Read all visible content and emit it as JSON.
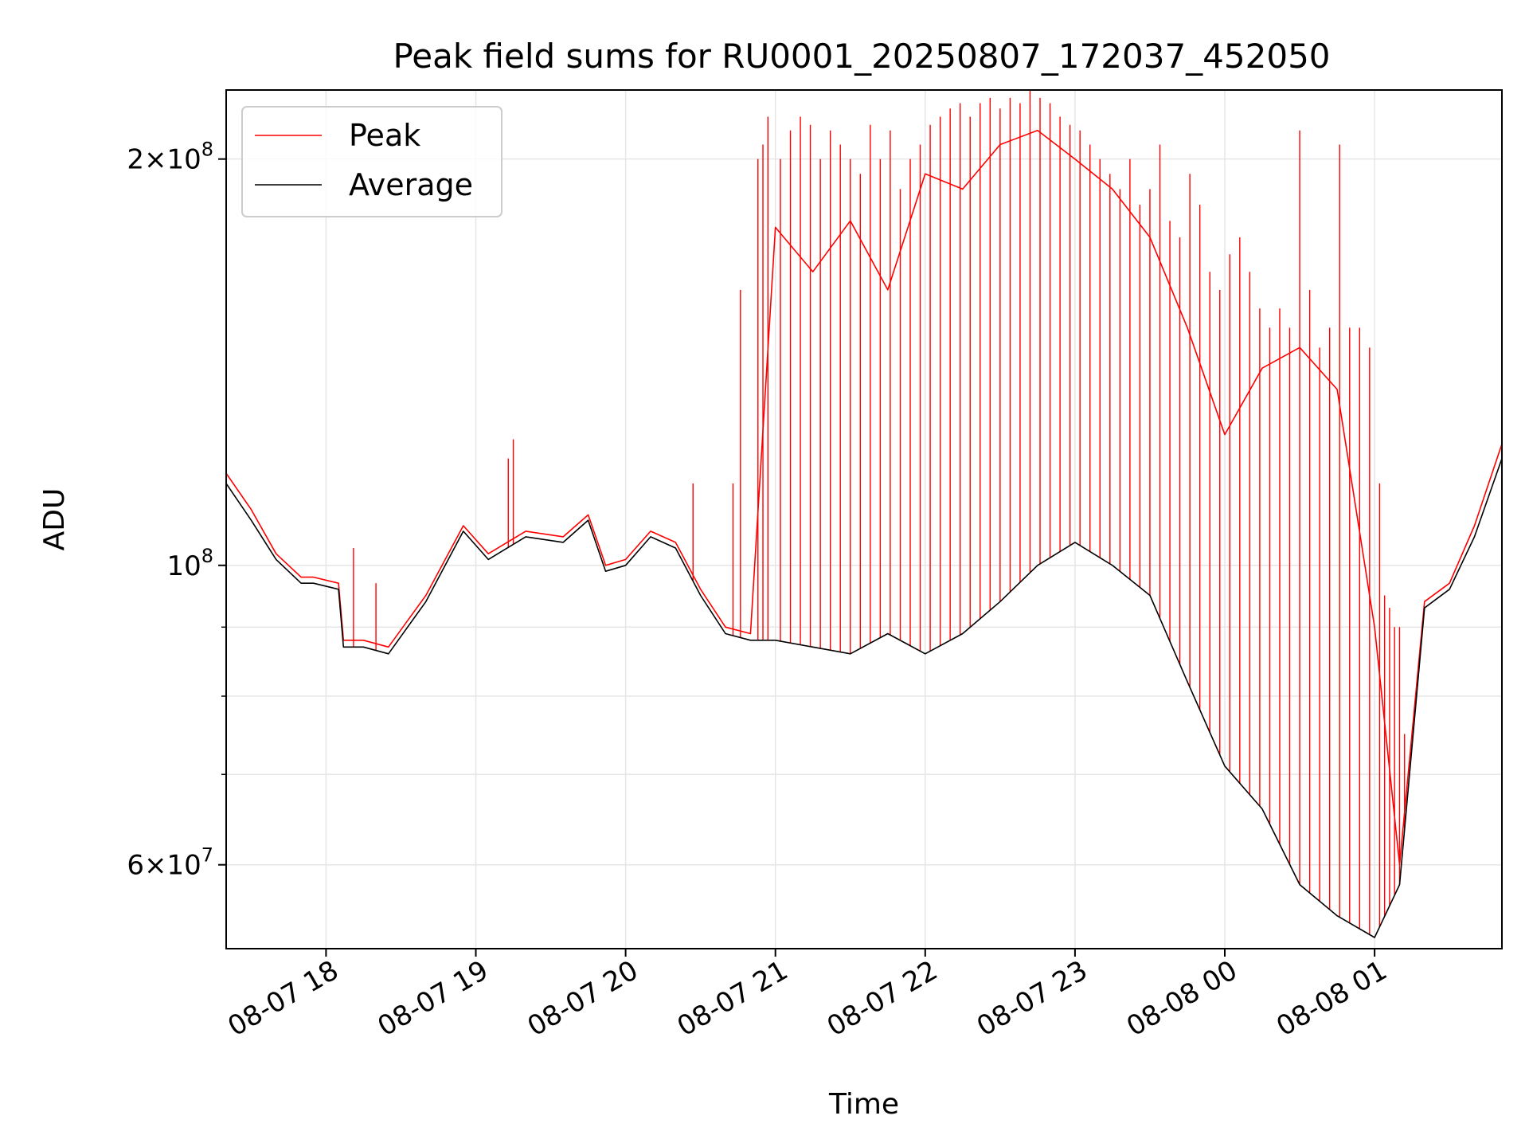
{
  "chart_data": {
    "type": "line",
    "title": "Peak field sums for RU0001_20250807_172037_452050",
    "xlabel": "Time",
    "ylabel": "ADU",
    "y_scale": "log",
    "xlim": [
      "2025-08-07 17:20",
      "2025-08-08 01:51"
    ],
    "ylim": [
      52000000,
      225000000
    ],
    "grid": true,
    "legend_position": "top-left",
    "x_ticks": [
      "08-07 18",
      "08-07 19",
      "08-07 20",
      "08-07 21",
      "08-07 22",
      "08-07 23",
      "08-08 00",
      "08-08 01"
    ],
    "y_ticks_major": [
      {
        "value": 60000000,
        "mantissa": "6",
        "exponent": "7"
      },
      {
        "value": 100000000,
        "mantissa": "",
        "exponent": "8"
      },
      {
        "value": 200000000,
        "mantissa": "2",
        "exponent": "8"
      }
    ],
    "y_ticks_minor": [
      70000000,
      80000000,
      90000000
    ],
    "series": [
      {
        "name": "Average",
        "color": "#000000",
        "x": [
          "2025-08-07 17:20",
          "2025-08-07 17:30",
          "2025-08-07 17:40",
          "2025-08-07 17:50",
          "2025-08-07 17:55",
          "2025-08-07 18:05",
          "2025-08-07 18:07",
          "2025-08-07 18:15",
          "2025-08-07 18:25",
          "2025-08-07 18:40",
          "2025-08-07 18:55",
          "2025-08-07 19:05",
          "2025-08-07 19:20",
          "2025-08-07 19:35",
          "2025-08-07 19:45",
          "2025-08-07 19:52",
          "2025-08-07 20:00",
          "2025-08-07 20:10",
          "2025-08-07 20:20",
          "2025-08-07 20:30",
          "2025-08-07 20:40",
          "2025-08-07 20:50",
          "2025-08-07 21:00",
          "2025-08-07 21:15",
          "2025-08-07 21:30",
          "2025-08-07 21:45",
          "2025-08-07 22:00",
          "2025-08-07 22:15",
          "2025-08-07 22:30",
          "2025-08-07 22:45",
          "2025-08-07 23:00",
          "2025-08-07 23:15",
          "2025-08-07 23:30",
          "2025-08-07 23:45",
          "2025-08-08 00:00",
          "2025-08-08 00:15",
          "2025-08-08 00:30",
          "2025-08-08 00:45",
          "2025-08-08 01:00",
          "2025-08-08 01:10",
          "2025-08-08 01:20",
          "2025-08-08 01:30",
          "2025-08-08 01:40",
          "2025-08-08 01:51"
        ],
        "values": [
          115000000,
          108000000,
          101000000,
          97000000,
          97000000,
          96000000,
          87000000,
          87000000,
          86000000,
          94000000,
          106000000,
          101000000,
          105000000,
          104000000,
          108000000,
          99000000,
          100000000,
          105000000,
          103000000,
          95000000,
          89000000,
          88000000,
          88000000,
          87000000,
          86000000,
          89000000,
          86000000,
          89000000,
          94000000,
          100000000,
          104000000,
          100000000,
          95000000,
          82000000,
          71000000,
          66000000,
          58000000,
          55000000,
          53000000,
          58000000,
          93000000,
          96000000,
          105000000,
          120000000
        ]
      },
      {
        "name": "Peak",
        "color": "#ff0000",
        "x": [
          "2025-08-07 17:20",
          "2025-08-07 17:30",
          "2025-08-07 17:40",
          "2025-08-07 17:50",
          "2025-08-07 17:55",
          "2025-08-07 18:05",
          "2025-08-07 18:07",
          "2025-08-07 18:15",
          "2025-08-07 18:25",
          "2025-08-07 18:40",
          "2025-08-07 18:55",
          "2025-08-07 19:05",
          "2025-08-07 19:20",
          "2025-08-07 19:35",
          "2025-08-07 19:45",
          "2025-08-07 19:52",
          "2025-08-07 20:00",
          "2025-08-07 20:10",
          "2025-08-07 20:20",
          "2025-08-07 20:30",
          "2025-08-07 20:40",
          "2025-08-07 20:50",
          "2025-08-07 21:00",
          "2025-08-07 21:15",
          "2025-08-07 21:30",
          "2025-08-07 21:45",
          "2025-08-07 22:00",
          "2025-08-07 22:15",
          "2025-08-07 22:30",
          "2025-08-07 22:45",
          "2025-08-07 23:00",
          "2025-08-07 23:15",
          "2025-08-07 23:30",
          "2025-08-07 23:45",
          "2025-08-08 00:00",
          "2025-08-08 00:15",
          "2025-08-08 00:30",
          "2025-08-08 00:45",
          "2025-08-08 01:00",
          "2025-08-08 01:10",
          "2025-08-08 01:20",
          "2025-08-08 01:30",
          "2025-08-08 01:40",
          "2025-08-08 01:51"
        ],
        "values": [
          117000000,
          110000000,
          102000000,
          98000000,
          98000000,
          97000000,
          88000000,
          88000000,
          87000000,
          95000000,
          107000000,
          102000000,
          106000000,
          105000000,
          109000000,
          100000000,
          101000000,
          106000000,
          104000000,
          96000000,
          90000000,
          89000000,
          178000000,
          165000000,
          180000000,
          160000000,
          195000000,
          190000000,
          205000000,
          210000000,
          200000000,
          190000000,
          175000000,
          150000000,
          125000000,
          140000000,
          145000000,
          135000000,
          90000000,
          60000000,
          94000000,
          97000000,
          107000000,
          123000000
        ]
      }
    ],
    "peak_spikes": {
      "times": [
        "2025-08-07 18:11",
        "2025-08-07 18:20",
        "2025-08-07 19:13",
        "2025-08-07 19:15",
        "2025-08-07 20:27",
        "2025-08-07 20:43",
        "2025-08-07 20:46",
        "2025-08-07 20:53",
        "2025-08-07 20:55",
        "2025-08-07 20:57",
        "2025-08-07 21:02",
        "2025-08-07 21:06",
        "2025-08-07 21:10",
        "2025-08-07 21:14",
        "2025-08-07 21:18",
        "2025-08-07 21:22",
        "2025-08-07 21:26",
        "2025-08-07 21:30",
        "2025-08-07 21:34",
        "2025-08-07 21:38",
        "2025-08-07 21:42",
        "2025-08-07 21:46",
        "2025-08-07 21:50",
        "2025-08-07 21:54",
        "2025-08-07 21:58",
        "2025-08-07 22:02",
        "2025-08-07 22:06",
        "2025-08-07 22:10",
        "2025-08-07 22:14",
        "2025-08-07 22:18",
        "2025-08-07 22:22",
        "2025-08-07 22:26",
        "2025-08-07 22:30",
        "2025-08-07 22:34",
        "2025-08-07 22:38",
        "2025-08-07 22:42",
        "2025-08-07 22:46",
        "2025-08-07 22:50",
        "2025-08-07 22:54",
        "2025-08-07 22:58",
        "2025-08-07 23:02",
        "2025-08-07 23:06",
        "2025-08-07 23:10",
        "2025-08-07 23:14",
        "2025-08-07 23:18",
        "2025-08-07 23:22",
        "2025-08-07 23:26",
        "2025-08-07 23:30",
        "2025-08-07 23:34",
        "2025-08-07 23:38",
        "2025-08-07 23:42",
        "2025-08-07 23:46",
        "2025-08-07 23:50",
        "2025-08-07 23:54",
        "2025-08-07 23:58",
        "2025-08-08 00:02",
        "2025-08-08 00:06",
        "2025-08-08 00:10",
        "2025-08-08 00:14",
        "2025-08-08 00:18",
        "2025-08-08 00:22",
        "2025-08-08 00:26",
        "2025-08-08 00:30",
        "2025-08-08 00:34",
        "2025-08-08 00:38",
        "2025-08-08 00:42",
        "2025-08-08 00:46",
        "2025-08-08 00:50",
        "2025-08-08 00:54",
        "2025-08-08 00:58",
        "2025-08-08 01:02",
        "2025-08-08 01:04",
        "2025-08-08 01:06",
        "2025-08-08 01:08",
        "2025-08-08 01:10",
        "2025-08-08 01:12"
      ],
      "values": [
        103000000,
        97000000,
        120000000,
        124000000,
        115000000,
        115000000,
        160000000,
        200000000,
        205000000,
        215000000,
        200000000,
        210000000,
        215000000,
        212000000,
        200000000,
        210000000,
        205000000,
        200000000,
        195000000,
        212000000,
        200000000,
        210000000,
        190000000,
        200000000,
        205000000,
        212000000,
        215000000,
        218000000,
        220000000,
        215000000,
        220000000,
        222000000,
        218000000,
        222000000,
        220000000,
        225000000,
        222000000,
        220000000,
        215000000,
        212000000,
        210000000,
        205000000,
        200000000,
        195000000,
        190000000,
        200000000,
        185000000,
        190000000,
        205000000,
        180000000,
        175000000,
        195000000,
        185000000,
        165000000,
        160000000,
        170000000,
        175000000,
        165000000,
        155000000,
        150000000,
        155000000,
        150000000,
        210000000,
        160000000,
        145000000,
        150000000,
        205000000,
        150000000,
        150000000,
        145000000,
        115000000,
        95000000,
        93000000,
        90000000,
        90000000,
        75000000
      ]
    }
  }
}
